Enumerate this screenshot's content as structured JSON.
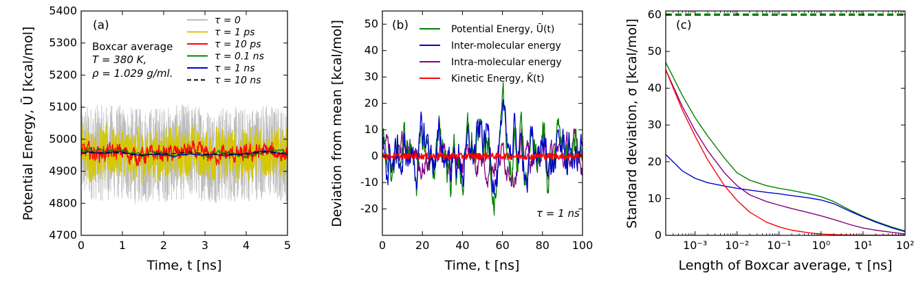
{
  "chart_data": [
    {
      "id": "a",
      "type": "line",
      "panel_label": "(a)",
      "xlabel": "Time, t [ns]",
      "ylabel": "Potential Energy, Ū [kcal/mol]",
      "xlim": [
        0,
        5
      ],
      "ylim": [
        4700,
        5400
      ],
      "xticks": [
        0,
        1,
        2,
        3,
        4,
        5
      ],
      "yticks": [
        4700,
        4800,
        4900,
        5000,
        5100,
        5200,
        5300,
        5400
      ],
      "annotations": [
        "Boxcar average",
        "T = 380 K,",
        "ρ = 1.029 g/ml."
      ],
      "mean": 4955,
      "series": [
        {
          "name": "τ = 0",
          "color": "#bbbbbb",
          "amplitude": 150
        },
        {
          "name": "τ = 1 ps",
          "color": "#d4c800",
          "amplitude": 45
        },
        {
          "name": "τ = 10 ps",
          "color": "#ff0000",
          "amplitude": 15
        },
        {
          "name": "τ = 0.1 ns",
          "color": "#008000",
          "amplitude": 6
        },
        {
          "name": "τ = 1 ns",
          "color": "#0000cc",
          "amplitude": 4
        },
        {
          "name": "τ = 10 ns",
          "color": "#000000",
          "amplitude": 0,
          "dashed": true
        }
      ]
    },
    {
      "id": "b",
      "type": "line",
      "panel_label": "(b)",
      "xlabel": "Time, t [ns]",
      "ylabel": "Deviation from mean [kcal/mol]",
      "xlim": [
        0,
        100
      ],
      "ylim": [
        -30,
        55
      ],
      "xticks": [
        0,
        20,
        40,
        60,
        80,
        100
      ],
      "yticks": [
        -20,
        -10,
        0,
        10,
        20,
        30,
        40,
        50
      ],
      "annotations": [
        "τ = 1 ns"
      ],
      "series": [
        {
          "name": "Potential Energy, Ū(t)",
          "color": "#008000",
          "amplitude": 10
        },
        {
          "name": "Inter-molecular energy",
          "color": "#0000cc",
          "amplitude": 9
        },
        {
          "name": "Intra-molecular energy",
          "color": "#800080",
          "amplitude": 4.5
        },
        {
          "name": "Kinetic Energy, K̄(t)",
          "color": "#ff0000",
          "amplitude": 1.2
        }
      ]
    },
    {
      "id": "c",
      "type": "line",
      "panel_label": "(c)",
      "xlabel": "Length of Boxcar average, τ [ns]",
      "ylabel": "Standard deviation, σ [kcal/mol]",
      "xscale": "log",
      "xlim": [
        0.0002,
        100
      ],
      "ylim": [
        0,
        61
      ],
      "xticks": [
        {
          "value": 0.001,
          "label": "10⁻³"
        },
        {
          "value": 0.01,
          "label": "10⁻²"
        },
        {
          "value": 0.1,
          "label": "10⁻¹"
        },
        {
          "value": 1,
          "label": "10⁰"
        },
        {
          "value": 10,
          "label": "10¹"
        },
        {
          "value": 100,
          "label": "10²"
        }
      ],
      "yticks": [
        0,
        10,
        20,
        30,
        40,
        50,
        60
      ],
      "reference_line": {
        "y": 60,
        "color": "#008000",
        "dashed": true
      },
      "x": [
        0.0002,
        0.0005,
        0.001,
        0.002,
        0.005,
        0.01,
        0.02,
        0.05,
        0.1,
        0.2,
        0.5,
        1,
        2,
        5,
        10,
        20,
        50,
        100
      ],
      "series": [
        {
          "name": "Potential Energy",
          "color": "#008000",
          "values": [
            47,
            38,
            32,
            27,
            21,
            17,
            15,
            13.5,
            12.8,
            12.2,
            11.3,
            10.5,
            9.2,
            6.8,
            5.2,
            3.8,
            2.2,
            1.2
          ]
        },
        {
          "name": "Inter-molecular energy",
          "color": "#0000cc",
          "values": [
            22,
            17.5,
            15.5,
            14.3,
            13.4,
            12.8,
            12.3,
            11.7,
            11.3,
            10.8,
            10.2,
            9.6,
            8.6,
            6.5,
            5.0,
            3.6,
            2.0,
            1.0
          ]
        },
        {
          "name": "Intra-molecular energy",
          "color": "#800080",
          "values": [
            45,
            35,
            28.5,
            23,
            17,
            13.5,
            11,
            9.2,
            8.2,
            7.3,
            6.2,
            5.3,
            4.3,
            2.9,
            2.0,
            1.4,
            0.8,
            0.4
          ]
        },
        {
          "name": "Kinetic Energy",
          "color": "#ff0000",
          "values": [
            45,
            34,
            27,
            20.5,
            13.5,
            9.5,
            6.3,
            3.6,
            2.3,
            1.4,
            0.7,
            0.35,
            0.2,
            0.1,
            0.05,
            0.05,
            0.05,
            0.05
          ]
        }
      ]
    }
  ]
}
